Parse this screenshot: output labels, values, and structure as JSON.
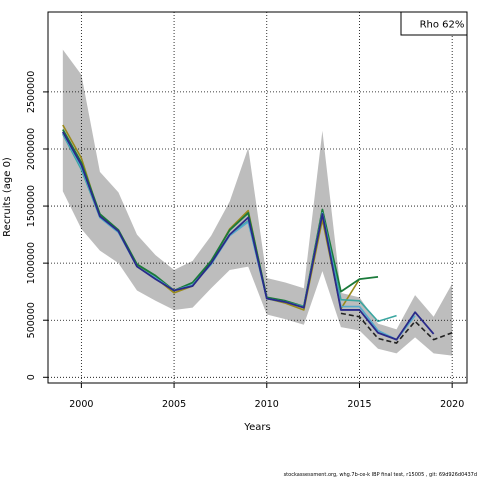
{
  "chart_data": {
    "type": "line",
    "title": "",
    "xlabel": "Years",
    "ylabel": "Recruits (age 0)",
    "xlim": [
      1998.2,
      2020.8
    ],
    "ylim": [
      -50000,
      3200000
    ],
    "xticks": [
      2000,
      2005,
      2010,
      2015,
      2020
    ],
    "yticks": [
      0,
      500000,
      1000000,
      1500000,
      2000000,
      2500000
    ],
    "xtick_labels": [
      "2000",
      "2005",
      "2010",
      "2015",
      "2020"
    ],
    "ytick_labels": [
      "0",
      "500000",
      "1000000",
      "1500000",
      "2000000",
      "2500000"
    ],
    "grid": true,
    "legend": {
      "position": "top-right",
      "label": "Rho 62%"
    },
    "band": {
      "x": [
        1999,
        2000,
        2001,
        2002,
        2003,
        2004,
        2005,
        2006,
        2007,
        2008,
        2009,
        2010,
        2011,
        2012,
        2013,
        2014,
        2015,
        2016,
        2017,
        2018,
        2019,
        2020
      ],
      "upper": [
        2870000,
        2650000,
        1800000,
        1620000,
        1250000,
        1070000,
        940000,
        1020000,
        1240000,
        1540000,
        2010000,
        870000,
        830000,
        780000,
        2160000,
        740000,
        700000,
        470000,
        420000,
        720000,
        530000,
        820000
      ],
      "lower": [
        1630000,
        1300000,
        1110000,
        1000000,
        760000,
        670000,
        590000,
        610000,
        780000,
        940000,
        970000,
        550000,
        510000,
        460000,
        930000,
        440000,
        410000,
        250000,
        210000,
        350000,
        210000,
        190000
      ]
    },
    "series": [
      {
        "color": "#9a8a1a",
        "width": 1.6,
        "dash": "",
        "x": [
          1999,
          2000,
          2001,
          2002,
          2003,
          2004,
          2005,
          2006,
          2007,
          2008,
          2009,
          2010,
          2011,
          2012,
          2013,
          2014,
          2015
        ],
        "values": [
          2210000,
          1920000,
          1410000,
          1280000,
          980000,
          870000,
          740000,
          800000,
          1010000,
          1300000,
          1460000,
          690000,
          650000,
          590000,
          1380000,
          600000,
          860000
        ]
      },
      {
        "color": "#1a7a3a",
        "width": 1.8,
        "dash": "",
        "x": [
          1999,
          2000,
          2001,
          2002,
          2003,
          2004,
          2005,
          2006,
          2007,
          2008,
          2009,
          2010,
          2011,
          2012,
          2013,
          2014,
          2015,
          2016
        ],
        "values": [
          2170000,
          1880000,
          1430000,
          1290000,
          990000,
          890000,
          760000,
          830000,
          1020000,
          1290000,
          1440000,
          700000,
          670000,
          620000,
          1470000,
          750000,
          860000,
          880000
        ]
      },
      {
        "color": "#3aa6a0",
        "width": 1.6,
        "dash": "",
        "x": [
          1999,
          2000,
          2001,
          2002,
          2003,
          2004,
          2005,
          2006,
          2007,
          2008,
          2009,
          2010,
          2011,
          2012,
          2013,
          2014,
          2015,
          2016,
          2017
        ],
        "values": [
          2130000,
          1820000,
          1400000,
          1270000,
          970000,
          870000,
          760000,
          810000,
          990000,
          1250000,
          1370000,
          690000,
          660000,
          620000,
          1440000,
          680000,
          670000,
          490000,
          540000
        ]
      },
      {
        "color": "#55aacc",
        "width": 1.6,
        "dash": "",
        "x": [
          1999,
          2000,
          2001,
          2002,
          2003,
          2004,
          2005,
          2006,
          2007,
          2008,
          2009,
          2010,
          2011,
          2012,
          2013,
          2014,
          2015,
          2016,
          2017,
          2018
        ],
        "values": [
          2140000,
          1840000,
          1400000,
          1270000,
          970000,
          870000,
          760000,
          810000,
          990000,
          1240000,
          1360000,
          690000,
          660000,
          610000,
          1440000,
          620000,
          620000,
          410000,
          330000,
          540000
        ]
      },
      {
        "color": "#2a2a8a",
        "width": 1.8,
        "dash": "",
        "x": [
          1999,
          2000,
          2001,
          2002,
          2003,
          2004,
          2005,
          2006,
          2007,
          2008,
          2009,
          2010,
          2011,
          2012,
          2013,
          2014,
          2015,
          2016,
          2017,
          2018,
          2019
        ],
        "values": [
          2150000,
          1860000,
          1410000,
          1280000,
          970000,
          860000,
          760000,
          800000,
          1000000,
          1250000,
          1400000,
          690000,
          660000,
          610000,
          1430000,
          590000,
          590000,
          390000,
          330000,
          570000,
          380000
        ]
      },
      {
        "color": "#222222",
        "width": 1.6,
        "dash": "5,3",
        "x": [
          2014,
          2015,
          2016,
          2017,
          2018,
          2019,
          2020
        ],
        "values": [
          560000,
          530000,
          340000,
          300000,
          490000,
          330000,
          390000
        ]
      }
    ]
  },
  "footer": "stockassessment.org, whg.7b-ce-k IBP final test, r15005 , git: 69d926d0437d"
}
